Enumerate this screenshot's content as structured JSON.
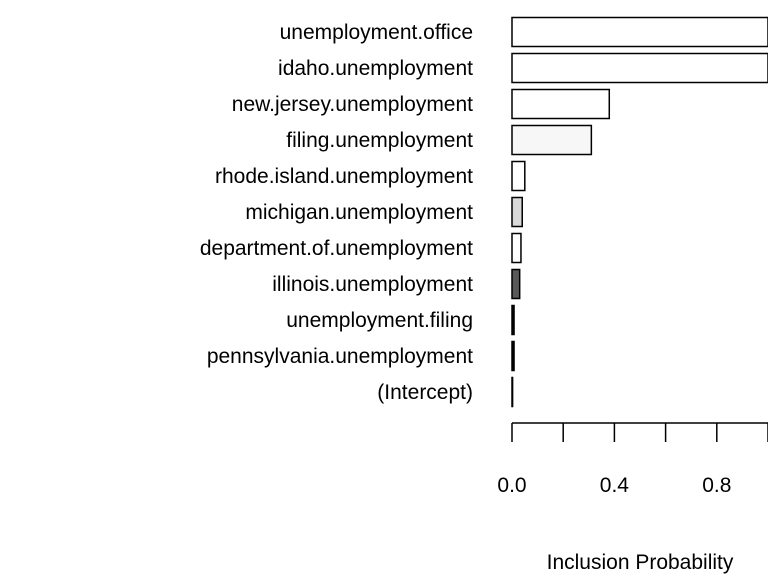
{
  "chart_data": {
    "type": "bar",
    "orientation": "horizontal",
    "categories": [
      "unemployment.office",
      "idaho.unemployment",
      "new.jersey.unemployment",
      "filing.unemployment",
      "rhode.island.unemployment",
      "michigan.unemployment",
      "department.of.unemployment",
      "illinois.unemployment",
      "unemployment.filing",
      "pennsylvania.unemployment",
      "(Intercept)"
    ],
    "values": [
      1.0,
      1.0,
      0.38,
      0.31,
      0.05,
      0.04,
      0.035,
      0.03,
      0.008,
      0.008,
      0.0
    ],
    "bar_fills": [
      "#ffffff",
      "#ffffff",
      "#ffffff",
      "#f7f7f7",
      "#ffffff",
      "#d9d9d9",
      "#ffffff",
      "#595959",
      "#000000",
      "#000000",
      "#ffffff"
    ],
    "xlabel": "Inclusion Probability",
    "ylabel": "",
    "xlim": [
      0,
      1
    ],
    "xticks": [
      0,
      0.2,
      0.4,
      0.6,
      0.8,
      1.0
    ],
    "xtick_labels": [
      "0.0",
      "",
      "0.4",
      "",
      "0.8",
      ""
    ],
    "grid": false,
    "legend": "none"
  }
}
